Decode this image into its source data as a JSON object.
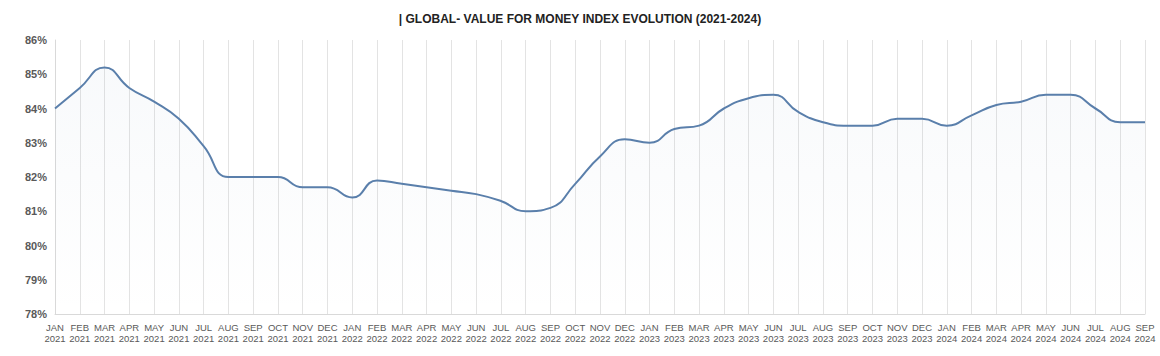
{
  "chart_data": {
    "type": "line",
    "title": "| GLOBAL- VALUE FOR MONEY INDEX EVOLUTION (2021-2024)",
    "categories": [
      "JAN 2021",
      "FEB 2021",
      "MAR 2021",
      "APR 2021",
      "MAY 2021",
      "JUN 2021",
      "JUL 2021",
      "AUG 2021",
      "SEP 2021",
      "OCT 2021",
      "NOV 2021",
      "DEC 2021",
      "JAN 2022",
      "FEB 2022",
      "MAR 2022",
      "APR 2022",
      "MAY 2022",
      "JUN 2022",
      "JUL 2022",
      "AUG 2022",
      "SEP 2022",
      "OCT 2022",
      "NOV 2022",
      "DEC 2022",
      "JAN 2023",
      "FEB 2023",
      "MAR 2023",
      "APR 2023",
      "MAY 2023",
      "JUN 2023",
      "JUL 2023",
      "AUG 2023",
      "SEP 2023",
      "OCT 2023",
      "NOV 2023",
      "DEC 2023",
      "JAN 2024",
      "FEB 2024",
      "MAR 2024",
      "APR 2024",
      "MAY 2024",
      "JUN 2024",
      "JUL 2024",
      "AUG 2024",
      "SEP 2024"
    ],
    "values": [
      84.0,
      84.6,
      85.2,
      84.6,
      84.2,
      83.7,
      82.9,
      82.0,
      82.0,
      82.0,
      81.7,
      81.7,
      81.4,
      81.9,
      81.8,
      81.7,
      81.6,
      81.5,
      81.3,
      81.0,
      81.1,
      81.8,
      82.6,
      83.1,
      83.0,
      83.4,
      83.5,
      84.0,
      84.3,
      84.4,
      83.9,
      83.6,
      83.5,
      83.5,
      83.7,
      83.7,
      83.5,
      83.8,
      84.1,
      84.2,
      84.4,
      84.4,
      84.0,
      83.6,
      83.6
    ],
    "color": "#5a7fab",
    "marker": "none",
    "ylim": [
      78,
      86
    ],
    "yticks": [
      {
        "value": 78,
        "label": "78%"
      },
      {
        "value": 79,
        "label": "79%"
      },
      {
        "value": 80,
        "label": "80%"
      },
      {
        "value": 81,
        "label": "81%"
      },
      {
        "value": 82,
        "label": "82%"
      },
      {
        "value": 83,
        "label": "83%"
      },
      {
        "value": 84,
        "label": "84%"
      },
      {
        "value": 85,
        "label": "85%"
      },
      {
        "value": 86,
        "label": "86%"
      }
    ],
    "grid": true
  }
}
